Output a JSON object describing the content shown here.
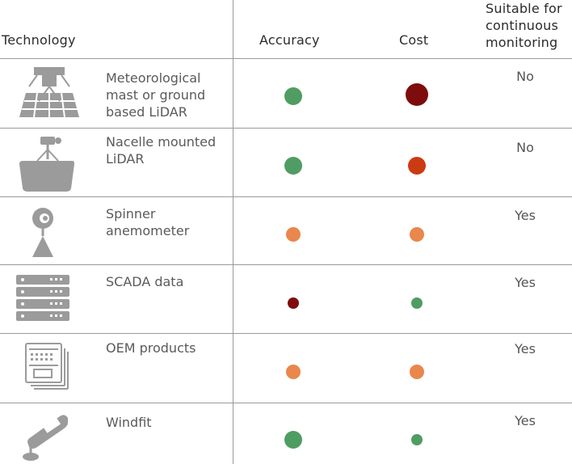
{
  "header": {
    "technology": "Technology",
    "accuracy": "Accuracy",
    "cost": "Cost",
    "suitable_line1": "Suitable for",
    "suitable_line2": "continuous",
    "suitable_line3": "monitoring"
  },
  "colors": {
    "green": "#4f9d63",
    "dark_red": "#7e0c0c",
    "red_orange": "#cc3a12",
    "orange": "#e9874c",
    "icon_grey": "#9b9b9b",
    "divider": "#9a9a9a"
  },
  "rows": [
    {
      "icon": "lidar-mast-icon",
      "name_lines": [
        "Meteorological",
        "mast or ground",
        "based LiDAR"
      ],
      "accuracy": {
        "level": "high",
        "color": "green",
        "size": "large"
      },
      "cost": {
        "level": "very high",
        "color": "dark_red",
        "size": "large"
      },
      "suitable": "No"
    },
    {
      "icon": "nacelle-lidar-icon",
      "name_lines": [
        "Nacelle mounted",
        "LiDAR"
      ],
      "accuracy": {
        "level": "high",
        "color": "green",
        "size": "large"
      },
      "cost": {
        "level": "high",
        "color": "red_orange",
        "size": "large"
      },
      "suitable": "No"
    },
    {
      "icon": "spinner-anemometer-icon",
      "name_lines": [
        "Spinner",
        "anemometer"
      ],
      "accuracy": {
        "level": "medium",
        "color": "orange",
        "size": "medium"
      },
      "cost": {
        "level": "medium",
        "color": "orange",
        "size": "medium"
      },
      "suitable": "Yes"
    },
    {
      "icon": "server-rack-icon",
      "name_lines": [
        "SCADA data"
      ],
      "accuracy": {
        "level": "low",
        "color": "dark_red",
        "size": "small"
      },
      "cost": {
        "level": "low",
        "color": "green",
        "size": "small"
      },
      "suitable": "Yes"
    },
    {
      "icon": "oem-device-icon",
      "name_lines": [
        "OEM products"
      ],
      "accuracy": {
        "level": "medium",
        "color": "orange",
        "size": "medium"
      },
      "cost": {
        "level": "medium",
        "color": "orange",
        "size": "medium"
      },
      "suitable": "Yes"
    },
    {
      "icon": "handheld-device-icon",
      "name_lines": [
        "Windfit"
      ],
      "accuracy": {
        "level": "high",
        "color": "green",
        "size": "large"
      },
      "cost": {
        "level": "low",
        "color": "green",
        "size": "small"
      },
      "suitable": "Yes"
    }
  ]
}
